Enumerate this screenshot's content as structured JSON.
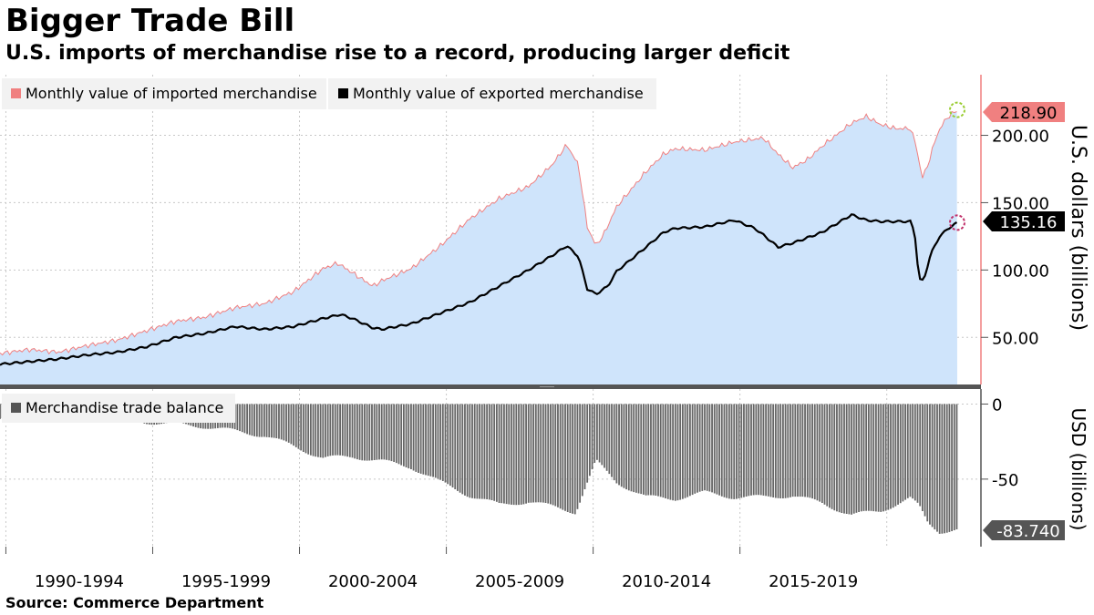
{
  "header": {
    "title": "Bigger Trade Bill",
    "subtitle": "U.S. imports of merchandise rise to a record, producing larger deficit"
  },
  "footer": {
    "source": "Source: Commerce Department"
  },
  "colors": {
    "imports_line": "#f08080",
    "imports_fill": "#cfe4fb",
    "exports_line": "#000000",
    "balance_bar": "#666666",
    "imports_tag": "#f08080",
    "exports_tag": "#000000",
    "balance_tag": "#555555",
    "imports_marker": "#9acd32",
    "exports_marker": "#c0306a"
  },
  "chart_data": [
    {
      "type": "area",
      "panel": "top",
      "ylabel": "U.S. dollars (billions)",
      "ylim": [
        15,
        245
      ],
      "yticks": [
        "50.00",
        "100.00",
        "150.00",
        "200.00"
      ],
      "grid": true,
      "legend_position": "top-left",
      "x_categories": [
        "1990-1994",
        "1995-1999",
        "2000-2004",
        "2005-2009",
        "2010-2014",
        "2015-2019"
      ],
      "x_range": [
        1989.0,
        2021.6
      ],
      "series": [
        {
          "name": "Monthly value of imported merchandise",
          "last_value_label": "218.90",
          "points": [
            [
              1989.0,
              38
            ],
            [
              1990.0,
              41
            ],
            [
              1991.0,
              39
            ],
            [
              1992.0,
              44
            ],
            [
              1993.0,
              48
            ],
            [
              1994.0,
              55
            ],
            [
              1995.0,
              62
            ],
            [
              1996.0,
              65
            ],
            [
              1997.0,
              72
            ],
            [
              1998.0,
              75
            ],
            [
              1999.0,
              84
            ],
            [
              2000.0,
              101
            ],
            [
              2000.5,
              105
            ],
            [
              2001.0,
              98
            ],
            [
              2001.7,
              88
            ],
            [
              2002.0,
              92
            ],
            [
              2003.0,
              101
            ],
            [
              2004.0,
              118
            ],
            [
              2005.0,
              138
            ],
            [
              2006.0,
              153
            ],
            [
              2007.0,
              162
            ],
            [
              2007.8,
              178
            ],
            [
              2008.3,
              193
            ],
            [
              2008.7,
              178
            ],
            [
              2009.0,
              132
            ],
            [
              2009.3,
              118
            ],
            [
              2009.6,
              128
            ],
            [
              2010.0,
              147
            ],
            [
              2011.0,
              173
            ],
            [
              2011.6,
              186
            ],
            [
              2012.0,
              190
            ],
            [
              2013.0,
              189
            ],
            [
              2014.0,
              195
            ],
            [
              2015.0,
              198
            ],
            [
              2015.5,
              186
            ],
            [
              2016.0,
              176
            ],
            [
              2016.5,
              182
            ],
            [
              2017.0,
              192
            ],
            [
              2018.0,
              209
            ],
            [
              2018.5,
              214
            ],
            [
              2019.0,
              208
            ],
            [
              2019.5,
              205
            ],
            [
              2020.0,
              205
            ],
            [
              2020.2,
              193
            ],
            [
              2020.4,
              168
            ],
            [
              2020.6,
              178
            ],
            [
              2020.9,
              200
            ],
            [
              2021.2,
              212
            ],
            [
              2021.6,
              218.9
            ]
          ]
        },
        {
          "name": "Monthly value of exported merchandise",
          "last_value_label": "135.16",
          "points": [
            [
              1989.0,
              30
            ],
            [
              1990.0,
              32
            ],
            [
              1991.0,
              34
            ],
            [
              1992.0,
              37
            ],
            [
              1993.0,
              39
            ],
            [
              1994.0,
              43
            ],
            [
              1995.0,
              50
            ],
            [
              1996.0,
              53
            ],
            [
              1997.0,
              58
            ],
            [
              1998.0,
              56
            ],
            [
              1999.0,
              58
            ],
            [
              2000.0,
              64
            ],
            [
              2000.6,
              67
            ],
            [
              2001.0,
              64
            ],
            [
              2001.7,
              57
            ],
            [
              2002.0,
              56
            ],
            [
              2003.0,
              60
            ],
            [
              2004.0,
              68
            ],
            [
              2005.0,
              76
            ],
            [
              2006.0,
              88
            ],
            [
              2007.0,
              100
            ],
            [
              2007.9,
              112
            ],
            [
              2008.3,
              118
            ],
            [
              2008.7,
              110
            ],
            [
              2009.0,
              86
            ],
            [
              2009.3,
              82
            ],
            [
              2009.7,
              88
            ],
            [
              2010.0,
              99
            ],
            [
              2011.0,
              117
            ],
            [
              2011.6,
              128
            ],
            [
              2012.0,
              131
            ],
            [
              2013.0,
              132
            ],
            [
              2014.0,
              137
            ],
            [
              2014.7,
              131
            ],
            [
              2015.0,
              126
            ],
            [
              2015.5,
              117
            ],
            [
              2016.0,
              120
            ],
            [
              2017.0,
              128
            ],
            [
              2018.0,
              141
            ],
            [
              2018.5,
              137
            ],
            [
              2019.0,
              136
            ],
            [
              2020.0,
              136
            ],
            [
              2020.15,
              128
            ],
            [
              2020.3,
              93
            ],
            [
              2020.45,
              92
            ],
            [
              2020.7,
              112
            ],
            [
              2021.0,
              125
            ],
            [
              2021.3,
              131
            ],
            [
              2021.6,
              135.16
            ]
          ]
        }
      ]
    },
    {
      "type": "bar",
      "panel": "bottom",
      "ylabel": "USD (billions)",
      "ylim": [
        -95,
        10
      ],
      "yticks": [
        "0",
        "-50"
      ],
      "legend_position": "top-left",
      "series": [
        {
          "name": "Merchandise trade balance",
          "last_value_label": "-83.740",
          "points": [
            [
              1989.0,
              -9
            ],
            [
              1991.0,
              -6
            ],
            [
              1992.0,
              -7
            ],
            [
              1994.0,
              -12
            ],
            [
              1996.0,
              -15
            ],
            [
              1998.0,
              -21
            ],
            [
              1999.0,
              -28
            ],
            [
              2000.0,
              -36
            ],
            [
              2001.0,
              -35
            ],
            [
              2002.0,
              -38
            ],
            [
              2003.0,
              -42
            ],
            [
              2004.0,
              -52
            ],
            [
              2005.0,
              -61
            ],
            [
              2006.0,
              -67
            ],
            [
              2007.0,
              -65
            ],
            [
              2008.0,
              -69
            ],
            [
              2008.6,
              -72
            ],
            [
              2009.3,
              -38
            ],
            [
              2010.0,
              -52
            ],
            [
              2011.0,
              -62
            ],
            [
              2012.0,
              -63
            ],
            [
              2013.0,
              -59
            ],
            [
              2014.0,
              -62
            ],
            [
              2015.0,
              -62
            ],
            [
              2016.0,
              -61
            ],
            [
              2017.0,
              -66
            ],
            [
              2018.0,
              -74
            ],
            [
              2019.0,
              -71
            ],
            [
              2020.0,
              -63
            ],
            [
              2020.3,
              -68
            ],
            [
              2020.6,
              -79
            ],
            [
              2021.0,
              -85
            ],
            [
              2021.6,
              -83.74
            ]
          ]
        }
      ]
    }
  ]
}
